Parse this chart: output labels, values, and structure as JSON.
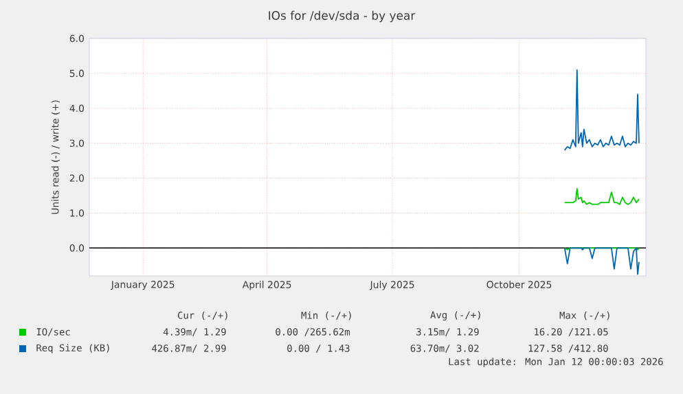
{
  "chart_data": {
    "type": "line",
    "title": "IOs for /dev/sda - by year",
    "ylabel": "Units read (-) / write (+)",
    "xlim": [
      "2024-12-08",
      "2026-01-16"
    ],
    "ylim": [
      -0.8,
      6.0
    ],
    "xticks": [
      {
        "value": "2025-01-16",
        "label": "January 2025"
      },
      {
        "value": "2025-04-16",
        "label": "April 2025"
      },
      {
        "value": "2025-07-16",
        "label": "July 2025"
      },
      {
        "value": "2025-10-16",
        "label": "October 2025"
      }
    ],
    "yticks": [
      {
        "value": 0,
        "label": "0.0"
      },
      {
        "value": 1,
        "label": "1.0"
      },
      {
        "value": 2,
        "label": "2.0"
      },
      {
        "value": 3,
        "label": "3.0"
      },
      {
        "value": 4,
        "label": "4.0"
      },
      {
        "value": 5,
        "label": "5.0"
      },
      {
        "value": 6,
        "label": "6.0"
      }
    ],
    "x": [
      "2025-11-18",
      "2025-11-20",
      "2025-11-22",
      "2025-11-24",
      "2025-11-26",
      "2025-11-27",
      "2025-11-28",
      "2025-11-30",
      "2025-12-01",
      "2025-12-02",
      "2025-12-04",
      "2025-12-06",
      "2025-12-08",
      "2025-12-10",
      "2025-12-12",
      "2025-12-14",
      "2025-12-16",
      "2025-12-18",
      "2025-12-20",
      "2025-12-22",
      "2025-12-24",
      "2025-12-26",
      "2025-12-28",
      "2025-12-30",
      "2026-01-01",
      "2026-01-03",
      "2026-01-05",
      "2026-01-07",
      "2026-01-09",
      "2026-01-10",
      "2026-01-11"
    ],
    "series": [
      {
        "name": "IO/sec",
        "color": "#00cc00",
        "values": [
          1.3,
          1.3,
          1.3,
          1.3,
          1.35,
          1.7,
          1.4,
          1.45,
          1.3,
          1.35,
          1.25,
          1.3,
          1.25,
          1.25,
          1.25,
          1.3,
          1.3,
          1.3,
          1.3,
          1.6,
          1.3,
          1.3,
          1.25,
          1.45,
          1.3,
          1.25,
          1.3,
          1.45,
          1.3,
          1.35,
          1.4
        ]
      },
      {
        "color": "#00cc00",
        "values": [
          0,
          -0.05,
          0,
          0,
          0,
          0,
          0,
          0,
          0,
          0,
          0,
          0,
          0,
          0,
          0,
          0,
          0,
          0,
          0,
          0,
          0,
          0,
          0,
          0,
          0,
          0,
          0,
          0,
          0,
          -0.05,
          0
        ]
      },
      {
        "name": "Req Size (KB)",
        "color": "#0066b3",
        "values": [
          2.8,
          2.9,
          2.85,
          3.1,
          2.9,
          5.1,
          3.0,
          3.3,
          2.9,
          3.4,
          3.0,
          3.1,
          2.9,
          3.0,
          2.95,
          3.1,
          2.9,
          3.0,
          2.95,
          3.2,
          2.95,
          3.0,
          2.95,
          3.2,
          2.9,
          3.0,
          2.95,
          3.05,
          3.0,
          4.4,
          3.0
        ]
      },
      {
        "color": "#0066b3",
        "values": [
          0,
          -0.45,
          0,
          0,
          0,
          0,
          0,
          0,
          -0.05,
          0,
          0,
          0,
          -0.3,
          0,
          0,
          0,
          0,
          0,
          0,
          0,
          -0.6,
          0,
          0,
          0,
          0,
          0,
          -0.6,
          -0.1,
          0,
          -0.75,
          -0.4
        ]
      }
    ],
    "ref_lines": [
      {
        "axis": "y",
        "value": 0,
        "color": "#000000"
      }
    ],
    "grid": true,
    "legend": "bottom left",
    "annotations": [
      "Cur (-/+)",
      "Min (-/+)",
      "Avg (-/+)",
      "Max (-/+)",
      "4.39m/ 1.29",
      "0.00 /265.62m",
      "3.15m/ 1.29",
      "16.20 /121.05",
      "426.87m/ 2.99",
      "0.00 / 1.43",
      "63.70m/ 3.02",
      "127.58 /412.80",
      "Last update: Mon Jan 12 00:00:03 2026"
    ]
  }
}
